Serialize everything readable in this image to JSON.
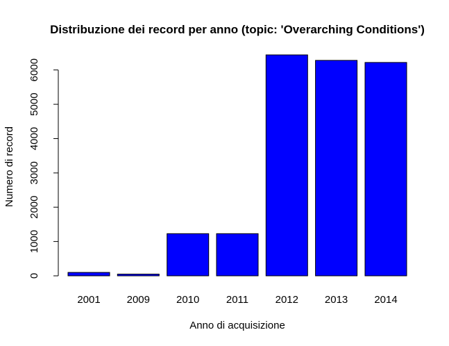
{
  "chart_data": {
    "type": "bar",
    "title": "Distribuzione dei record per anno (topic: 'Overarching Conditions')",
    "xlabel": "Anno di acquisizione",
    "ylabel": "Numero di record",
    "categories": [
      "2001",
      "2009",
      "2010",
      "2011",
      "2012",
      "2013",
      "2014"
    ],
    "values": [
      100,
      50,
      1230,
      1230,
      6440,
      6280,
      6220
    ],
    "ylim": [
      0,
      6440
    ],
    "yticks": [
      0,
      1000,
      2000,
      3000,
      4000,
      5000,
      6000
    ],
    "bar_color": "#0000ff",
    "grid": false,
    "legend": "none"
  }
}
